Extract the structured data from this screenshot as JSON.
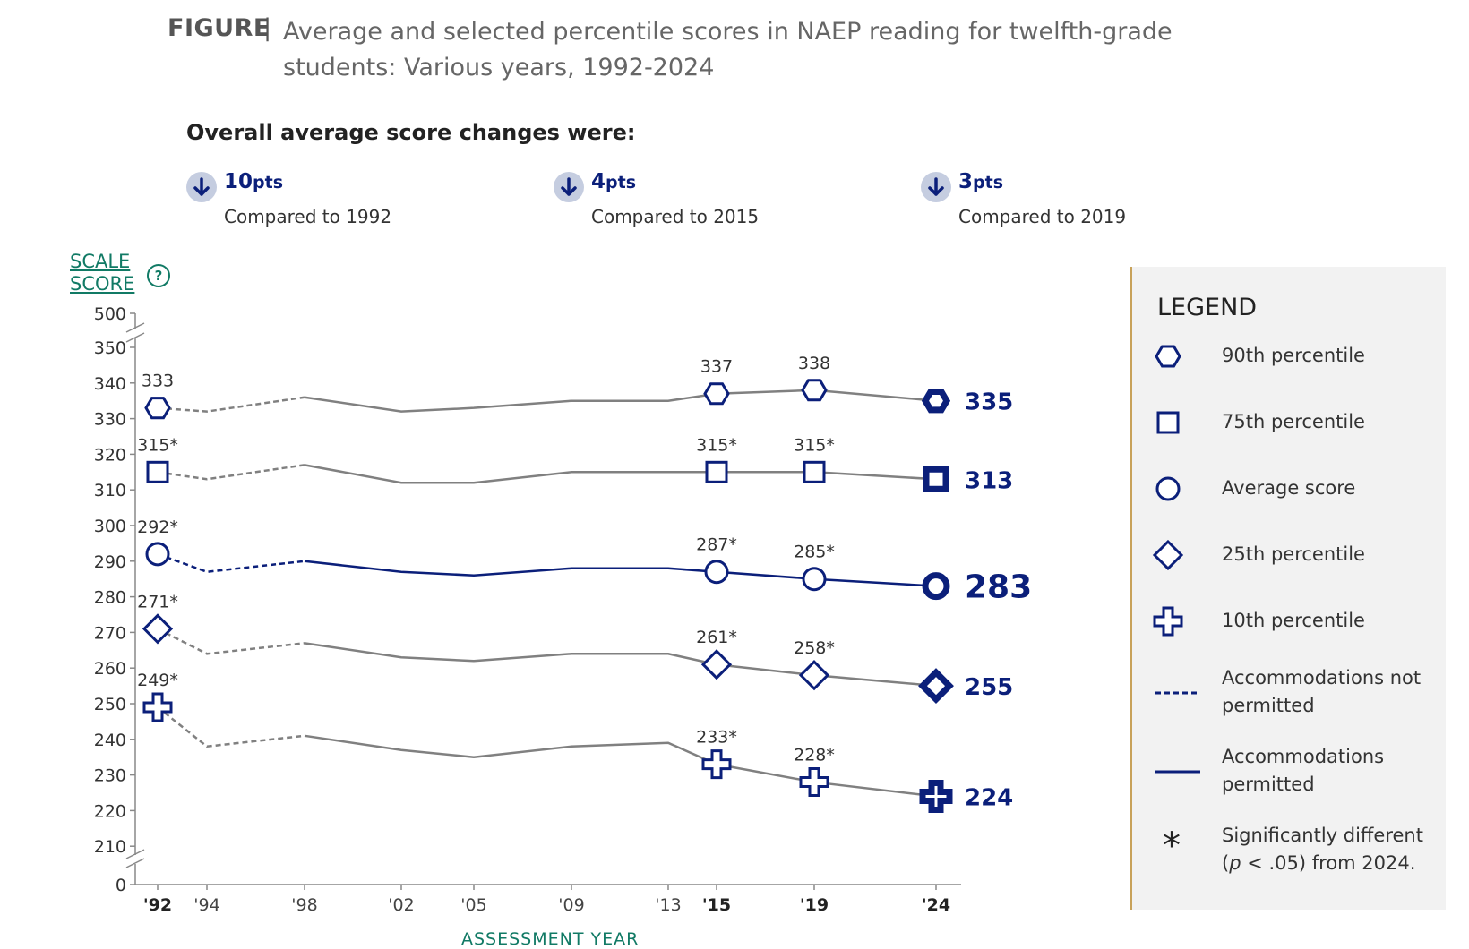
{
  "figure": {
    "label": "FIGURE",
    "separator": "|",
    "title": "Average and selected percentile scores in NAEP reading for twelfth-grade students: Various years, 1992-2024"
  },
  "changes": {
    "heading": "Overall average score changes were:",
    "items": [
      {
        "value": "10",
        "unit": "pts",
        "comparison": "Compared to 1992",
        "direction": "down"
      },
      {
        "value": "4",
        "unit": "pts",
        "comparison": "Compared to 2015",
        "direction": "down"
      },
      {
        "value": "3",
        "unit": "pts",
        "comparison": "Compared to 2019",
        "direction": "down"
      }
    ]
  },
  "axis": {
    "y_title_line1": "SCALE",
    "y_title_line2": "SCORE",
    "help_glyph": "?",
    "x_title": "ASSESSMENT YEAR"
  },
  "legend": {
    "title": "LEGEND",
    "items": [
      {
        "symbol": "hexagon",
        "label": "90th percentile"
      },
      {
        "symbol": "square",
        "label": "75th percentile"
      },
      {
        "symbol": "circle",
        "label": "Average score"
      },
      {
        "symbol": "diamond",
        "label": "25th percentile"
      },
      {
        "symbol": "cross",
        "label": "10th percentile"
      },
      {
        "symbol": "dashed-line",
        "label": "Accommodations not permitted"
      },
      {
        "symbol": "solid-line",
        "label": "Accommodations permitted"
      },
      {
        "symbol": "asterisk",
        "glyph": "*",
        "label_pre": "Significantly different (",
        "label_italic": "p",
        "label_post": " < .05) from 2024."
      }
    ]
  },
  "colors": {
    "navy": "#0b1f7a",
    "gray_line": "#808080",
    "axis": "#888888",
    "teal": "#117a65",
    "arrow_bg": "#c5cde0",
    "legend_border": "#c8a25a"
  },
  "chart_data": {
    "type": "line",
    "title": "Average and selected percentile scores in NAEP reading for twelfth-grade students: Various years, 1992-2024",
    "xlabel": "ASSESSMENT YEAR",
    "ylabel": "SCALE SCORE",
    "x": [
      1992,
      1994,
      1998,
      2002,
      2005,
      2009,
      2013,
      2015,
      2019,
      2024
    ],
    "x_tick_labels": [
      "'92",
      "'94",
      "'98",
      "'02",
      "'05",
      "'09",
      "'13",
      "'15",
      "'19",
      "'24"
    ],
    "x_bold_ticks": [
      "'92",
      "'15",
      "'19",
      "'24"
    ],
    "y_ticks": [
      "0",
      "210",
      "220",
      "230",
      "240",
      "250",
      "260",
      "270",
      "280",
      "290",
      "300",
      "310",
      "320",
      "330",
      "340",
      "350",
      "500"
    ],
    "y_break": "axis broken between 0 and 210 and between 350 and 500",
    "accommodations_start": 1998,
    "series": [
      {
        "name": "90th percentile",
        "symbol": "hexagon",
        "values": [
          333,
          332,
          336,
          332,
          333,
          335,
          335,
          337,
          338,
          335
        ],
        "labels": {
          "1992": "333",
          "2015": "337",
          "2019": "338",
          "2024": "335"
        }
      },
      {
        "name": "75th percentile",
        "symbol": "square",
        "values": [
          315,
          313,
          317,
          312,
          312,
          315,
          315,
          315,
          315,
          313
        ],
        "labels": {
          "1992": "315*",
          "2015": "315*",
          "2019": "315*",
          "2024": "313"
        }
      },
      {
        "name": "Average score",
        "symbol": "circle",
        "values": [
          292,
          287,
          290,
          287,
          286,
          288,
          288,
          287,
          285,
          283
        ],
        "labels": {
          "1992": "292*",
          "2015": "287*",
          "2019": "285*",
          "2024": "283"
        }
      },
      {
        "name": "25th percentile",
        "symbol": "diamond",
        "values": [
          271,
          264,
          267,
          263,
          262,
          264,
          264,
          261,
          258,
          255
        ],
        "labels": {
          "1992": "271*",
          "2015": "261*",
          "2019": "258*",
          "2024": "255"
        }
      },
      {
        "name": "10th percentile",
        "symbol": "cross",
        "values": [
          249,
          238,
          241,
          237,
          235,
          238,
          239,
          233,
          228,
          224
        ],
        "labels": {
          "1992": "249*",
          "2015": "233*",
          "2019": "228*",
          "2024": "224"
        }
      }
    ]
  }
}
